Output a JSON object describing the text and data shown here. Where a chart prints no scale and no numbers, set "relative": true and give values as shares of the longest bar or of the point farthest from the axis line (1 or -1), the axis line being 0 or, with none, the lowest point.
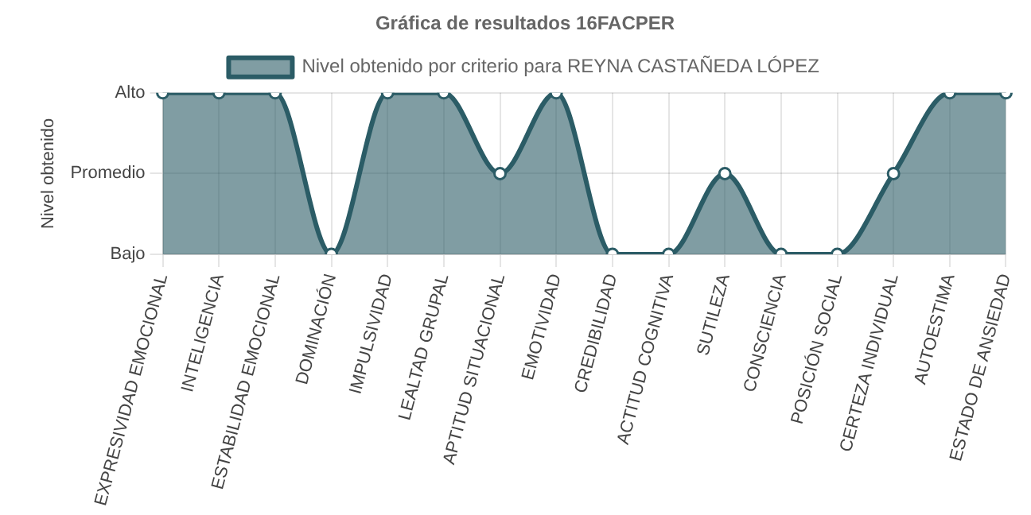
{
  "chart_data": {
    "type": "area",
    "title": "Gráfica de resultados 16FACPER",
    "ylabel": "Nivel obtenido",
    "categories": [
      "EXPRESIVIDAD EMOCIONAL",
      "INTELIGENCIA",
      "ESTABILIDAD EMOCIONAL",
      "DOMINACIÓN",
      "IMPULSIVIDAD",
      "LEALTAD GRUPAL",
      "APTITUD SITUACIONAL",
      "EMOTIVIDAD",
      "CREDIBILIDAD",
      "ACTITUD COGNITIVA",
      "SUTILEZA",
      "CONSCIENCIA",
      "POSICIÓN SOCIAL",
      "CERTEZA INDIVIDUAL",
      "AUTOESTIMA",
      "ESTADO DE ANSIEDAD"
    ],
    "series": [
      {
        "name": "Nivel obtenido por criterio para REYNA CASTAÑEDA LÓPEZ",
        "color": "#2b5c66",
        "values": [
          1,
          1,
          1,
          0,
          1,
          1,
          0.5,
          1,
          0,
          0,
          0.5,
          0,
          0,
          0.5,
          1,
          1
        ]
      }
    ],
    "relative": true,
    "annotations": [
      "Alto",
      "Promedio",
      "Bajo"
    ],
    "grid": true,
    "legend": "top",
    "marker": "circle"
  }
}
